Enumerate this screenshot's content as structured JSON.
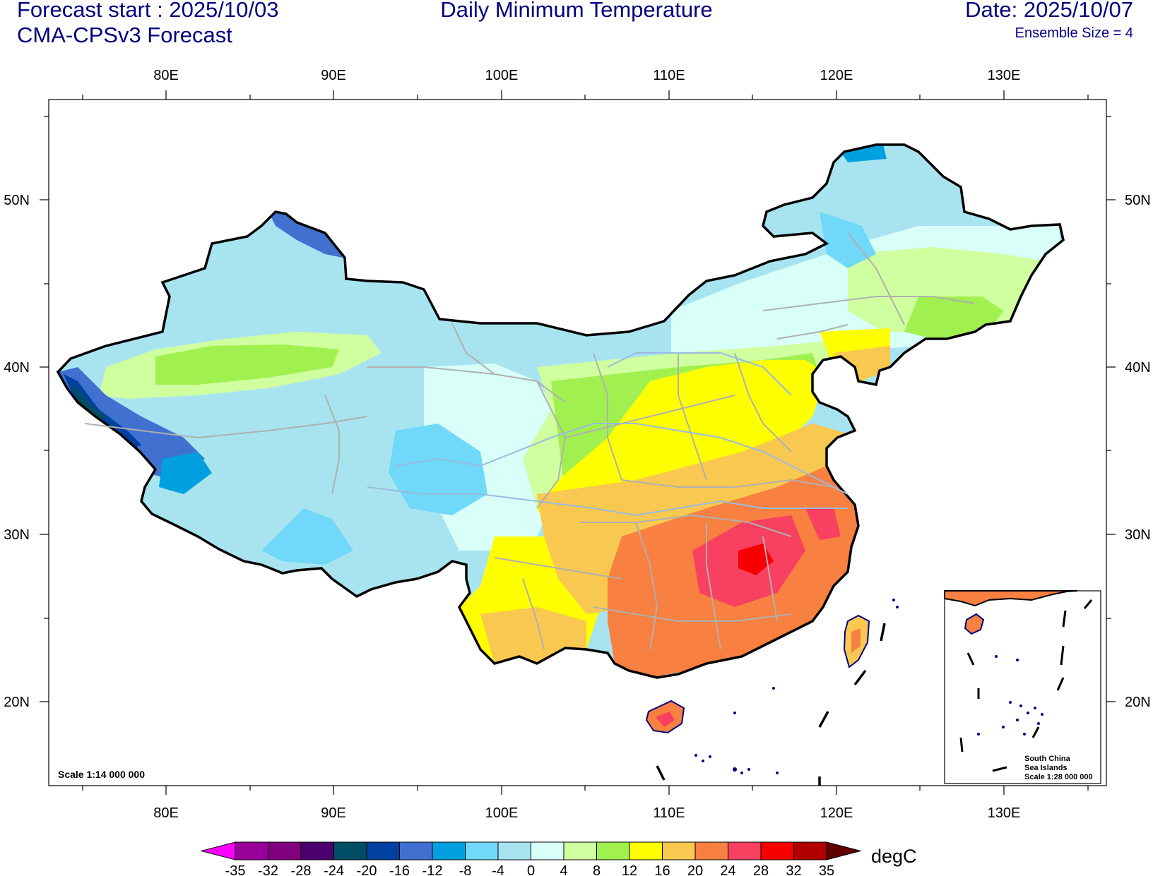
{
  "header": {
    "forecast_start": "Forecast start : 2025/10/03",
    "model": "CMA-CPSv3 Forecast",
    "title": "Daily Minimum Temperature",
    "date": "Date: 2025/10/07",
    "ensemble": "Ensemble Size = 4"
  },
  "axes": {
    "lon_labels": [
      "80E",
      "90E",
      "100E",
      "110E",
      "120E",
      "130E"
    ],
    "lat_labels": [
      "50N",
      "40N",
      "30N",
      "20N"
    ]
  },
  "map": {
    "scale_note": "Scale 1:14 000 000",
    "inset_title_1": "South China",
    "inset_title_2": "Sea Islands",
    "inset_scale": "Scale 1:28 000 000"
  },
  "legend": {
    "unit": "degC",
    "ticks": [
      "-35",
      "-32",
      "-28",
      "-24",
      "-20",
      "-16",
      "-12",
      "-8",
      "-4",
      "0",
      "4",
      "8",
      "12",
      "16",
      "20",
      "24",
      "28",
      "32",
      "35"
    ],
    "colors": [
      "#ff00ff",
      "#990099",
      "#800080",
      "#4b006e",
      "#004d66",
      "#0040a0",
      "#4070d0",
      "#00a0e0",
      "#70d8f8",
      "#a8e4f0",
      "#d8fff8",
      "#d0ffa0",
      "#a0f050",
      "#ffff00",
      "#f8c850",
      "#f88040",
      "#f84060",
      "#f80000",
      "#b00000",
      "#600000"
    ]
  }
}
